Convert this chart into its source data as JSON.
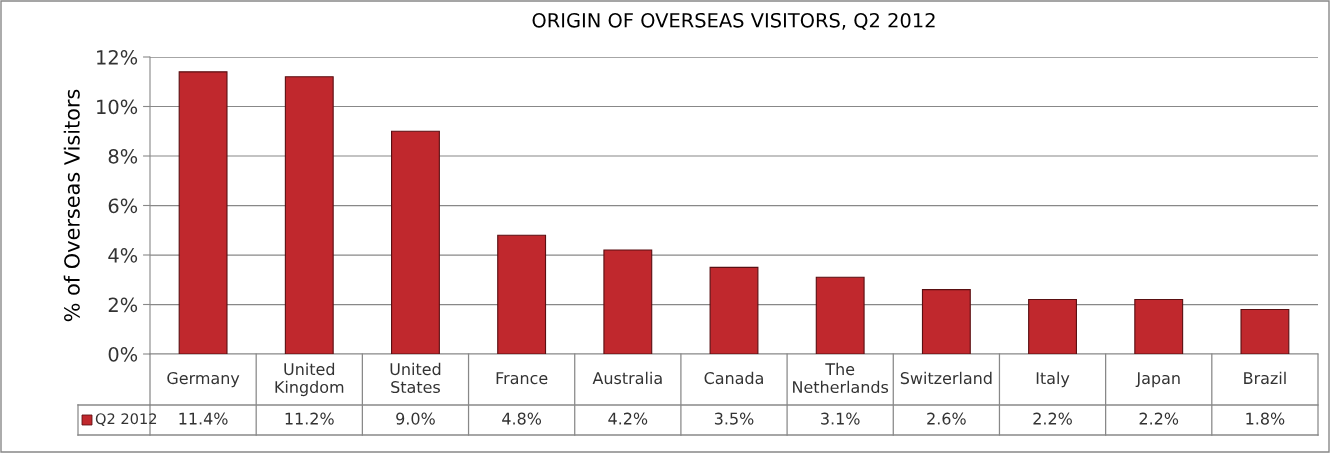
{
  "chart_data": {
    "type": "bar",
    "title": "ORIGIN OF OVERSEAS VISITORS, Q2 2012",
    "ylabel": "% of Overseas Visitors",
    "categories": [
      "Germany",
      "United Kingdom",
      "United States",
      "France",
      "Australia",
      "Canada",
      "The Netherlands",
      "Switzerland",
      "Italy",
      "Japan",
      "Brazil"
    ],
    "series": [
      {
        "name": "Q2 2012",
        "color": "#c0282d",
        "values": [
          11.4,
          11.2,
          9.0,
          4.8,
          4.2,
          3.5,
          3.1,
          2.6,
          2.2,
          2.2,
          1.8
        ],
        "value_labels": [
          "11.4%",
          "11.2%",
          "9.0%",
          "4.8%",
          "4.2%",
          "3.5%",
          "3.1%",
          "2.6%",
          "2.2%",
          "2.2%",
          "1.8%"
        ]
      }
    ],
    "ylim": [
      0,
      12
    ],
    "yticks": [
      {
        "value": 0,
        "label": "0%"
      },
      {
        "value": 2,
        "label": "2%"
      },
      {
        "value": 4,
        "label": "4%"
      },
      {
        "value": 6,
        "label": "6%"
      },
      {
        "value": 8,
        "label": "8%"
      },
      {
        "value": 10,
        "label": "10%"
      },
      {
        "value": 12,
        "label": "12%"
      }
    ],
    "grid": "y"
  }
}
